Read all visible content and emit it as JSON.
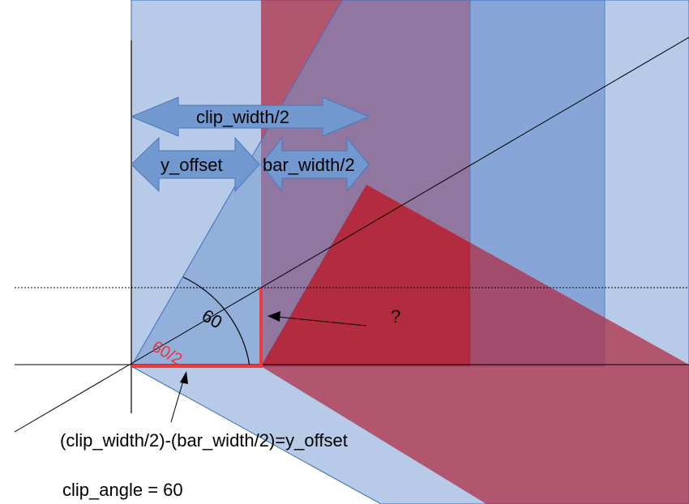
{
  "labels": {
    "clip_width_half": "clip_width/2",
    "y_offset": "y_offset",
    "bar_width_half": "bar_width/2",
    "angle": "60",
    "angle_half": "60/2",
    "question": "?",
    "equation": "(clip_width/2)-(bar_width/2)=y_offset",
    "clip_angle": "clip_angle = 60"
  },
  "colors": {
    "blue_fill": "#6f96cf",
    "blue_edge": "#3a6fc0",
    "red_fill": "#a3223a",
    "red_strong": "#b5283a",
    "arrow_fill": "#7199cf",
    "arrow_edge": "#4a78b8",
    "red_line": "#ef3b3b"
  }
}
